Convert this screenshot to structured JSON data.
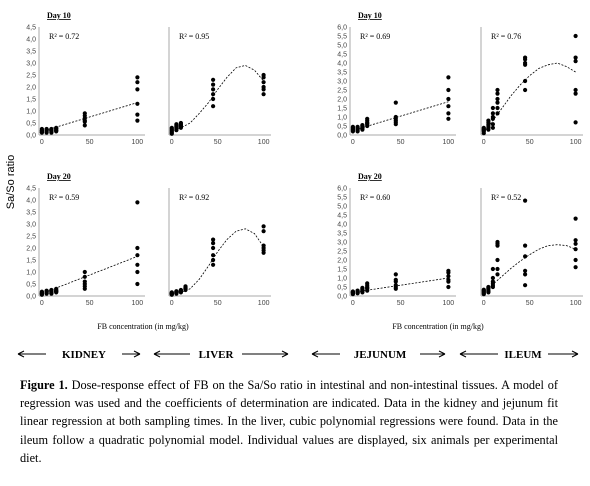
{
  "figure": {
    "y_axis_label": "Sa/So ratio",
    "x_axis_label": "FB concentration (in mg/kg)",
    "tissue_labels": [
      "KIDNEY",
      "LIVER",
      "JEJUNUM",
      "ILEUM"
    ]
  },
  "caption": {
    "label": "Figure 1.",
    "text": " Dose-response effect of FB on the Sa/So ratio in intestinal and non-intestinal tissues. A model of regression was used and the coefficients of determination are indicated. Data in the kidney and jejunum fit linear regression at both sampling times. In the liver, cubic polynomial regressions were found. Data in the ileum follow a quadratic polynomial model. Individual values are displayed, six animals per experimental diet."
  },
  "chart_data": [
    {
      "type": "scatter",
      "tissue": "KIDNEY",
      "title": "Day 10",
      "r2_label": "R² = 0.72",
      "fit": "linear",
      "ylim": [
        0,
        4.5
      ],
      "y_ticks": [
        "0,0",
        "0,5",
        "1,0",
        "1,5",
        "2,0",
        "2,5",
        "3,0",
        "3,5",
        "4,0",
        "4,5"
      ],
      "x_ticks": [
        0,
        50,
        100
      ],
      "fit_curve": {
        "x": [
          0,
          100
        ],
        "y": [
          0.15,
          1.35
        ]
      },
      "x": [
        0,
        0,
        0,
        0,
        0,
        0,
        5,
        5,
        5,
        5,
        5,
        5,
        10,
        10,
        10,
        10,
        10,
        10,
        15,
        15,
        15,
        15,
        15,
        15,
        45,
        45,
        45,
        45,
        45,
        45,
        100,
        100,
        100,
        100,
        100,
        100
      ],
      "y": [
        0.1,
        0.15,
        0.2,
        0.25,
        0.18,
        0.12,
        0.1,
        0.15,
        0.2,
        0.22,
        0.18,
        0.25,
        0.15,
        0.2,
        0.18,
        0.1,
        0.25,
        0.2,
        0.15,
        0.2,
        0.25,
        0.28,
        0.18,
        0.3,
        0.4,
        0.55,
        0.6,
        0.7,
        0.8,
        0.9,
        0.6,
        0.85,
        1.3,
        1.9,
        2.2,
        2.4
      ]
    },
    {
      "type": "scatter",
      "tissue": "LIVER",
      "title": "",
      "r2_label": "R² = 0.95",
      "fit": "cubic",
      "ylim": [
        0,
        4.5
      ],
      "x_ticks": [
        0,
        50,
        100
      ],
      "fit_curve": {
        "x": [
          0,
          10,
          20,
          30,
          40,
          50,
          60,
          70,
          80,
          90,
          100
        ],
        "y": [
          0.2,
          0.3,
          0.5,
          0.9,
          1.35,
          1.9,
          2.4,
          2.8,
          2.9,
          2.7,
          2.25
        ]
      },
      "x": [
        0,
        0,
        0,
        0,
        0,
        0,
        5,
        5,
        5,
        5,
        5,
        5,
        10,
        10,
        10,
        10,
        10,
        10,
        45,
        45,
        45,
        45,
        45,
        45,
        100,
        100,
        100,
        100,
        100,
        100
      ],
      "y": [
        0.05,
        0.1,
        0.15,
        0.2,
        0.25,
        0.3,
        0.2,
        0.3,
        0.35,
        0.4,
        0.45,
        0.25,
        0.3,
        0.35,
        0.4,
        0.45,
        0.5,
        0.38,
        1.2,
        1.5,
        1.7,
        1.9,
        2.1,
        2.3,
        1.7,
        1.9,
        2.0,
        2.2,
        2.4,
        2.5
      ]
    },
    {
      "type": "scatter",
      "tissue": "JEJUNUM",
      "title": "Day 10",
      "r2_label": "R² = 0.69",
      "fit": "linear",
      "ylim": [
        0,
        6.0
      ],
      "y_ticks": [
        "0,0",
        "0,5",
        "1,0",
        "1,5",
        "2,0",
        "2,5",
        "3,0",
        "3,5",
        "4,0",
        "4,5",
        "5,0",
        "5,5",
        "6,0"
      ],
      "x_ticks": [
        0,
        50,
        100
      ],
      "fit_curve": {
        "x": [
          0,
          100
        ],
        "y": [
          0.25,
          1.85
        ]
      },
      "x": [
        0,
        0,
        0,
        0,
        0,
        0,
        5,
        5,
        5,
        5,
        5,
        5,
        10,
        10,
        10,
        10,
        10,
        10,
        15,
        15,
        15,
        15,
        15,
        15,
        45,
        45,
        45,
        45,
        45,
        45,
        100,
        100,
        100,
        100,
        100,
        100
      ],
      "y": [
        0.2,
        0.3,
        0.35,
        0.4,
        0.25,
        0.45,
        0.2,
        0.3,
        0.4,
        0.35,
        0.25,
        0.45,
        0.3,
        0.4,
        0.5,
        0.35,
        0.45,
        0.55,
        0.5,
        0.6,
        0.7,
        0.8,
        0.9,
        0.65,
        0.6,
        0.7,
        0.8,
        0.9,
        1.0,
        1.8,
        0.9,
        1.2,
        1.6,
        2.0,
        2.5,
        3.2
      ]
    },
    {
      "type": "scatter",
      "tissue": "ILEUM",
      "title": "",
      "r2_label": "R² = 0.76",
      "fit": "quadratic",
      "ylim": [
        0,
        6.0
      ],
      "x_ticks": [
        0,
        50,
        100
      ],
      "fit_curve": {
        "x": [
          0,
          10,
          20,
          30,
          40,
          50,
          60,
          70,
          80,
          90,
          100
        ],
        "y": [
          0.15,
          0.8,
          1.5,
          2.2,
          2.8,
          3.3,
          3.7,
          3.9,
          4.0,
          3.8,
          3.5
        ]
      },
      "x": [
        0,
        0,
        0,
        0,
        0,
        0,
        5,
        5,
        5,
        5,
        5,
        5,
        10,
        10,
        10,
        10,
        10,
        10,
        15,
        15,
        15,
        15,
        15,
        15,
        45,
        45,
        45,
        45,
        45,
        45,
        100,
        100,
        100,
        100,
        100,
        100
      ],
      "y": [
        0.1,
        0.2,
        0.25,
        0.3,
        0.35,
        0.4,
        0.3,
        0.4,
        0.5,
        0.6,
        0.7,
        0.8,
        0.9,
        1.0,
        1.2,
        1.5,
        0.6,
        0.4,
        1.2,
        1.5,
        1.8,
        2.0,
        2.5,
        2.3,
        2.5,
        3.0,
        3.9,
        4.0,
        4.2,
        4.3,
        0.7,
        2.3,
        2.5,
        4.1,
        4.3,
        5.5
      ]
    },
    {
      "type": "scatter",
      "tissue": "KIDNEY",
      "title": "Day 20",
      "r2_label": "R² = 0.59",
      "fit": "linear",
      "ylim": [
        0,
        4.5
      ],
      "y_ticks": [
        "0,0",
        "0,5",
        "1,0",
        "1,5",
        "2,0",
        "2,5",
        "3,0",
        "3,5",
        "4,0",
        "4,5"
      ],
      "x_ticks": [
        0,
        50,
        100
      ],
      "fit_curve": {
        "x": [
          0,
          100
        ],
        "y": [
          0.1,
          1.65
        ]
      },
      "x": [
        0,
        0,
        0,
        0,
        0,
        0,
        5,
        5,
        5,
        5,
        5,
        5,
        10,
        10,
        10,
        10,
        10,
        10,
        15,
        15,
        15,
        15,
        15,
        15,
        45,
        45,
        45,
        45,
        45,
        45,
        100,
        100,
        100,
        100,
        100,
        100
      ],
      "y": [
        0.05,
        0.1,
        0.15,
        0.12,
        0.08,
        0.18,
        0.1,
        0.15,
        0.2,
        0.12,
        0.18,
        0.22,
        0.1,
        0.15,
        0.2,
        0.25,
        0.18,
        0.12,
        0.15,
        0.2,
        0.25,
        0.3,
        0.18,
        0.22,
        0.3,
        0.4,
        0.5,
        0.6,
        0.8,
        1.0,
        0.5,
        1.0,
        1.3,
        1.7,
        2.0,
        3.9
      ]
    },
    {
      "type": "scatter",
      "tissue": "LIVER",
      "title": "",
      "r2_label": "R² = 0.92",
      "fit": "cubic",
      "ylim": [
        0,
        4.5
      ],
      "x_ticks": [
        0,
        50,
        100
      ],
      "fit_curve": {
        "x": [
          0,
          10,
          20,
          30,
          40,
          50,
          60,
          70,
          80,
          90,
          100
        ],
        "y": [
          0.1,
          0.15,
          0.3,
          0.7,
          1.25,
          1.85,
          2.35,
          2.7,
          2.8,
          2.6,
          2.05
        ]
      },
      "x": [
        0,
        0,
        0,
        0,
        0,
        0,
        5,
        5,
        5,
        5,
        5,
        5,
        10,
        10,
        10,
        10,
        10,
        10,
        15,
        15,
        15,
        15,
        15,
        15,
        45,
        45,
        45,
        45,
        45,
        45,
        100,
        100,
        100,
        100,
        100,
        100
      ],
      "y": [
        0.05,
        0.08,
        0.1,
        0.12,
        0.15,
        0.1,
        0.1,
        0.12,
        0.15,
        0.18,
        0.2,
        0.15,
        0.15,
        0.2,
        0.25,
        0.22,
        0.18,
        0.2,
        0.25,
        0.3,
        0.35,
        0.4,
        0.32,
        0.28,
        1.3,
        1.5,
        1.7,
        2.0,
        2.2,
        2.35,
        1.8,
        1.9,
        2.0,
        2.1,
        2.7,
        2.9
      ]
    },
    {
      "type": "scatter",
      "tissue": "JEJUNUM",
      "title": "Day 20",
      "r2_label": "R² = 0.60",
      "fit": "linear",
      "ylim": [
        0,
        6.0
      ],
      "y_ticks": [
        "0,0",
        "0,5",
        "1,0",
        "1,5",
        "2,0",
        "2,5",
        "3,0",
        "3,5",
        "4,0",
        "4,5",
        "5,0",
        "5,5",
        "6,0"
      ],
      "x_ticks": [
        0,
        50,
        100
      ],
      "fit_curve": {
        "x": [
          0,
          100
        ],
        "y": [
          0.2,
          1.0
        ]
      },
      "x": [
        0,
        0,
        0,
        0,
        0,
        0,
        5,
        5,
        5,
        5,
        5,
        5,
        10,
        10,
        10,
        10,
        10,
        10,
        15,
        15,
        15,
        15,
        15,
        15,
        45,
        45,
        45,
        45,
        45,
        45,
        100,
        100,
        100,
        100,
        100,
        100
      ],
      "y": [
        0.1,
        0.15,
        0.2,
        0.25,
        0.18,
        0.22,
        0.15,
        0.2,
        0.25,
        0.3,
        0.22,
        0.18,
        0.2,
        0.3,
        0.35,
        0.4,
        0.25,
        0.45,
        0.3,
        0.4,
        0.5,
        0.6,
        0.7,
        0.45,
        0.4,
        0.5,
        0.6,
        0.8,
        0.9,
        1.2,
        0.5,
        0.8,
        0.9,
        1.1,
        1.3,
        1.4
      ]
    },
    {
      "type": "scatter",
      "tissue": "ILEUM",
      "title": "",
      "r2_label": "R² = 0.52",
      "fit": "quadratic",
      "ylim": [
        0,
        6.0
      ],
      "x_ticks": [
        0,
        50,
        100
      ],
      "fit_curve": {
        "x": [
          0,
          10,
          20,
          30,
          40,
          50,
          60,
          70,
          80,
          90,
          100
        ],
        "y": [
          0.2,
          0.65,
          1.1,
          1.55,
          1.95,
          2.3,
          2.6,
          2.8,
          2.85,
          2.8,
          2.6
        ]
      },
      "x": [
        0,
        0,
        0,
        0,
        0,
        0,
        5,
        5,
        5,
        5,
        5,
        5,
        10,
        10,
        10,
        10,
        10,
        10,
        15,
        15,
        15,
        15,
        15,
        15,
        45,
        45,
        45,
        45,
        45,
        45,
        100,
        100,
        100,
        100,
        100,
        100
      ],
      "y": [
        0.1,
        0.2,
        0.3,
        0.25,
        0.15,
        0.35,
        0.2,
        0.3,
        0.4,
        0.5,
        0.25,
        0.45,
        0.5,
        0.7,
        1.0,
        1.5,
        0.6,
        0.8,
        1.2,
        2.8,
        2.9,
        3.0,
        1.5,
        2.0,
        0.6,
        1.2,
        1.4,
        2.2,
        2.8,
        5.3,
        1.6,
        2.0,
        2.6,
        2.9,
        3.1,
        4.3
      ]
    }
  ]
}
